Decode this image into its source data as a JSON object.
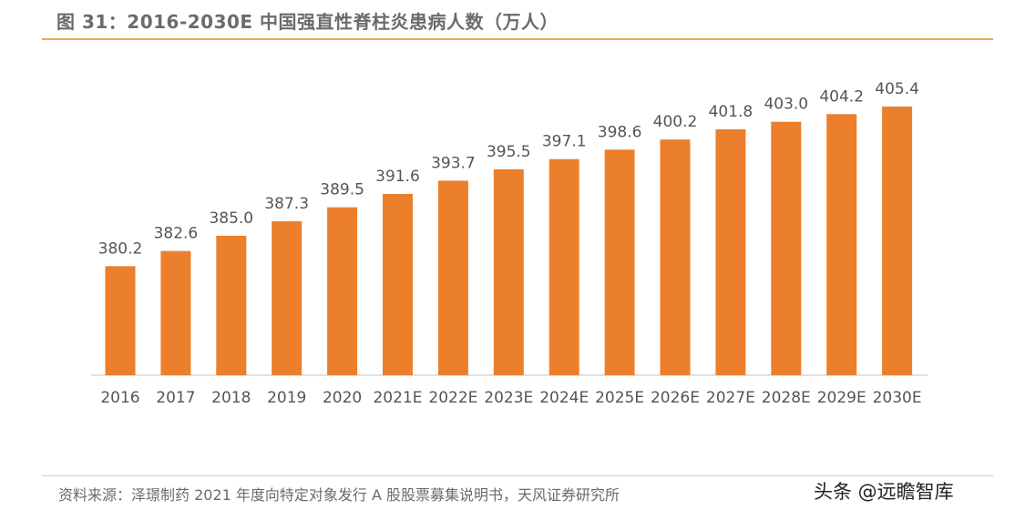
{
  "chart_data": {
    "type": "bar",
    "title": "图 31：2016-2030E 中国强直性脊柱炎患病人数（万人）",
    "categories": [
      "2016",
      "2017",
      "2018",
      "2019",
      "2020",
      "2021E",
      "2022E",
      "2023E",
      "2024E",
      "2025E",
      "2026E",
      "2027E",
      "2028E",
      "2029E",
      "2030E"
    ],
    "values": [
      380.2,
      382.6,
      385.0,
      387.3,
      389.5,
      391.6,
      393.7,
      395.5,
      397.1,
      398.6,
      400.2,
      401.8,
      403.0,
      404.2,
      405.4
    ],
    "value_labels": [
      "380.2",
      "382.6",
      "385.0",
      "387.3",
      "389.5",
      "391.6",
      "393.7",
      "395.5",
      "397.1",
      "398.6",
      "400.2",
      "401.8",
      "403.0",
      "404.2",
      "405.4"
    ],
    "xlabel": "",
    "ylabel": "",
    "ylim": [
      363,
      410
    ],
    "bar_color": "#ec7f2b",
    "grid": false,
    "legend": "none"
  },
  "source_text": "资料来源：泽璟制药 2021 年度向特定对象发行 A 股股票募集说明书，天风证券研究所",
  "watermark_text": "头条 @远瞻智库",
  "colors": {
    "accent_rule": "#f0a64e",
    "text": "#6b6b6b"
  }
}
